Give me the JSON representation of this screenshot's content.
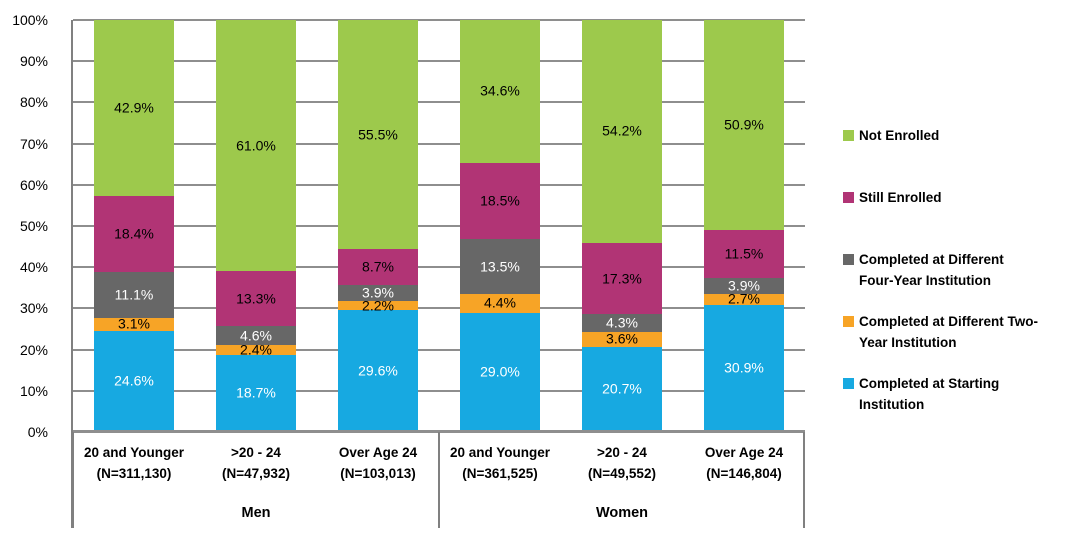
{
  "chart_data": {
    "type": "bar",
    "stacked": true,
    "title": "",
    "xlabel": "",
    "ylabel": "",
    "ylim": [
      0,
      100
    ],
    "grid": true,
    "y_ticks": [
      "0%",
      "10%",
      "20%",
      "30%",
      "40%",
      "50%",
      "60%",
      "70%",
      "80%",
      "90%",
      "100%"
    ],
    "categories": [
      {
        "age": "20 and Younger",
        "n": "(N=311,130)",
        "group": "Men"
      },
      {
        "age": ">20 - 24",
        "n": "(N=47,932)",
        "group": "Men"
      },
      {
        "age": "Over Age 24",
        "n": "(N=103,013)",
        "group": "Men"
      },
      {
        "age": "20 and Younger",
        "n": "(N=361,525)",
        "group": "Women"
      },
      {
        "age": ">20 - 24",
        "n": "(N=49,552)",
        "group": "Women"
      },
      {
        "age": "Over Age 24",
        "n": "(N=146,804)",
        "group": "Women"
      }
    ],
    "groups": [
      "Men",
      "Women"
    ],
    "series": [
      {
        "name": "Completed at Starting Institution",
        "color": "#17A9E1",
        "label_color": "#FFFFFF",
        "values": [
          24.6,
          18.7,
          29.6,
          29.0,
          20.7,
          30.9
        ]
      },
      {
        "name": "Completed at Different Two-Year Institution",
        "color": "#F7A426",
        "label_color": "#000000",
        "values": [
          3.1,
          2.4,
          2.2,
          4.4,
          3.6,
          2.7
        ]
      },
      {
        "name": "Completed at Different Four-Year Institution",
        "color": "#676767",
        "label_color": "#FFFFFF",
        "values": [
          11.1,
          4.6,
          3.9,
          13.5,
          4.3,
          3.9
        ]
      },
      {
        "name": "Still Enrolled",
        "color": "#B13475",
        "label_color": "#000000",
        "values": [
          18.4,
          13.3,
          8.7,
          18.5,
          17.3,
          11.5
        ]
      },
      {
        "name": "Not Enrolled",
        "color": "#9DC94C",
        "label_color": "#000000",
        "values": [
          42.9,
          61.0,
          55.5,
          34.6,
          54.2,
          50.9
        ]
      }
    ],
    "legend": {
      "position": "right",
      "order_top_to_bottom": [
        "Not Enrolled",
        "Still Enrolled",
        "Completed at Different Four-Year Institution",
        "Completed at Different Two-Year Institution",
        "Completed at Starting Institution"
      ]
    }
  },
  "colors": {
    "gridline": "#8E8E8E",
    "axis": "#808080",
    "background": "#FFFFFF",
    "text": "#000000"
  }
}
